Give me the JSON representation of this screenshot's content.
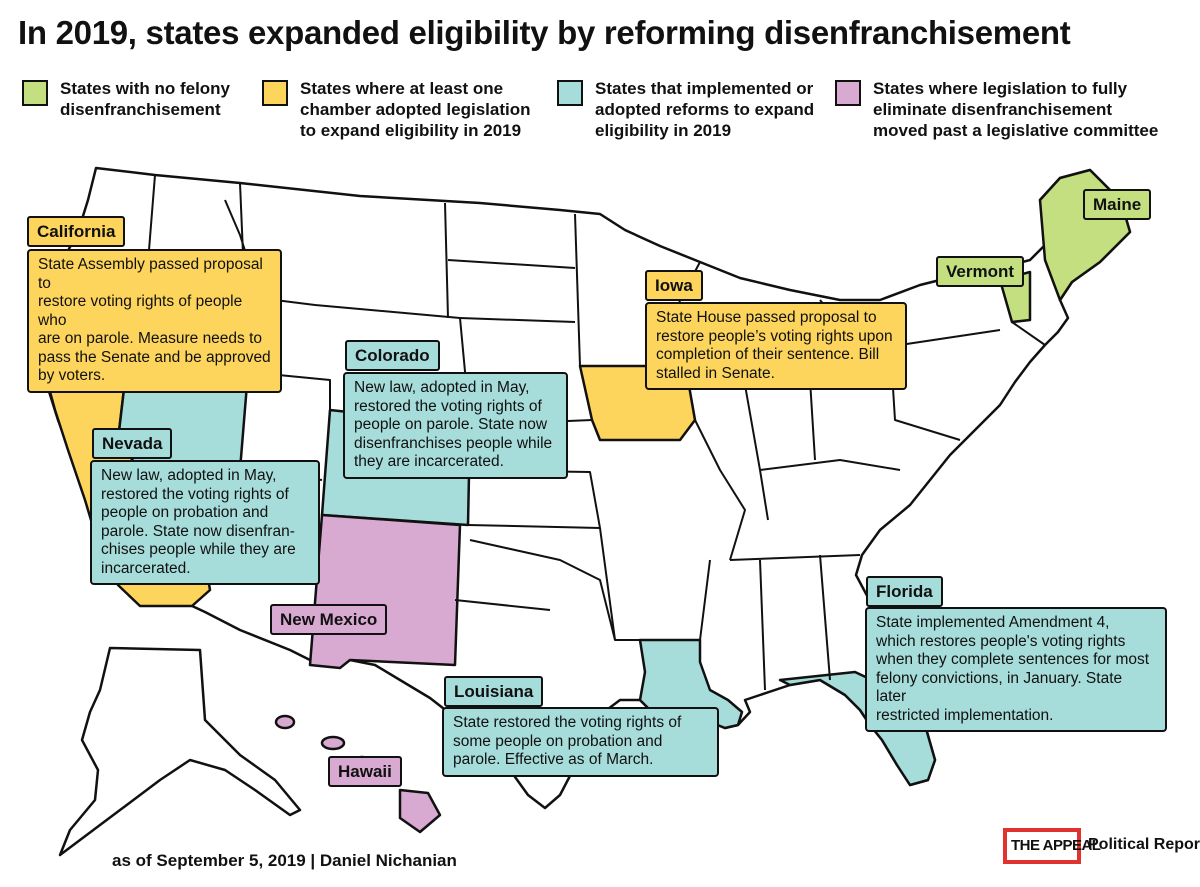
{
  "title": "In 2019, states expanded eligibility by reforming disenfranchisement",
  "colors": {
    "green": "#c3df80",
    "yellow": "#fdd45c",
    "teal": "#a6dcd9",
    "pink": "#d8a9d1",
    "outline": "#111111",
    "brand_red": "#e0332f"
  },
  "legend": [
    {
      "category": "green",
      "line1": "States with no felony",
      "line2": "disenfranchisement",
      "line3": ""
    },
    {
      "category": "yellow",
      "line1": "States where at least one",
      "line2": "chamber adopted legislation",
      "line3": "to expand eligibility in 2019"
    },
    {
      "category": "teal",
      "line1": "States that implemented or",
      "line2": "adopted reforms to expand",
      "line3": "eligibility in 2019"
    },
    {
      "category": "pink",
      "line1": "States where legislation to fully",
      "line2": "eliminate disenfranchisement",
      "line3": "moved past a legislative committee"
    }
  ],
  "states": {
    "california": {
      "name": "California",
      "category": "yellow",
      "note": [
        "State Assembly passed proposal to",
        "restore voting rights of people who",
        "are on parole. Measure needs to",
        "pass the Senate and be approved",
        "by voters."
      ]
    },
    "nevada": {
      "name": "Nevada",
      "category": "teal",
      "note": [
        "New law, adopted in May,",
        "restored the voting rights of",
        "people on probation and",
        "parole. State now disenfran-",
        "chises people while they are",
        "incarcerated."
      ]
    },
    "colorado": {
      "name": "Colorado",
      "category": "teal",
      "note": [
        "New law, adopted in May,",
        "restored the voting rights of",
        "people on parole. State now",
        "disenfranchises people while",
        "they are incarcerated."
      ]
    },
    "iowa": {
      "name": "Iowa",
      "category": "yellow",
      "note": [
        "State House passed proposal to",
        "restore people’s voting rights upon",
        "completion of their sentence. Bill",
        "stalled in Senate."
      ]
    },
    "maine": {
      "name": "Maine",
      "category": "green"
    },
    "vermont": {
      "name": "Vermont",
      "category": "green"
    },
    "new_mexico": {
      "name": "New Mexico",
      "category": "pink"
    },
    "hawaii": {
      "name": "Hawaii",
      "category": "pink"
    },
    "louisiana": {
      "name": "Louisiana",
      "category": "teal",
      "note": [
        "State restored the voting rights of",
        "some people on probation and",
        "parole. Effective as of March."
      ]
    },
    "florida": {
      "name": "Florida",
      "category": "teal",
      "note": [
        "State implemented Amendment 4,",
        "which restores people's voting rights",
        "when they complete sentences for most",
        "felony convictions, in January. State later",
        "restricted implementation."
      ]
    }
  },
  "footer": "as of September 5, 2019 | Daniel Nichanian",
  "logo": {
    "badge": "THE APPEAL",
    "side": "Political Report."
  }
}
